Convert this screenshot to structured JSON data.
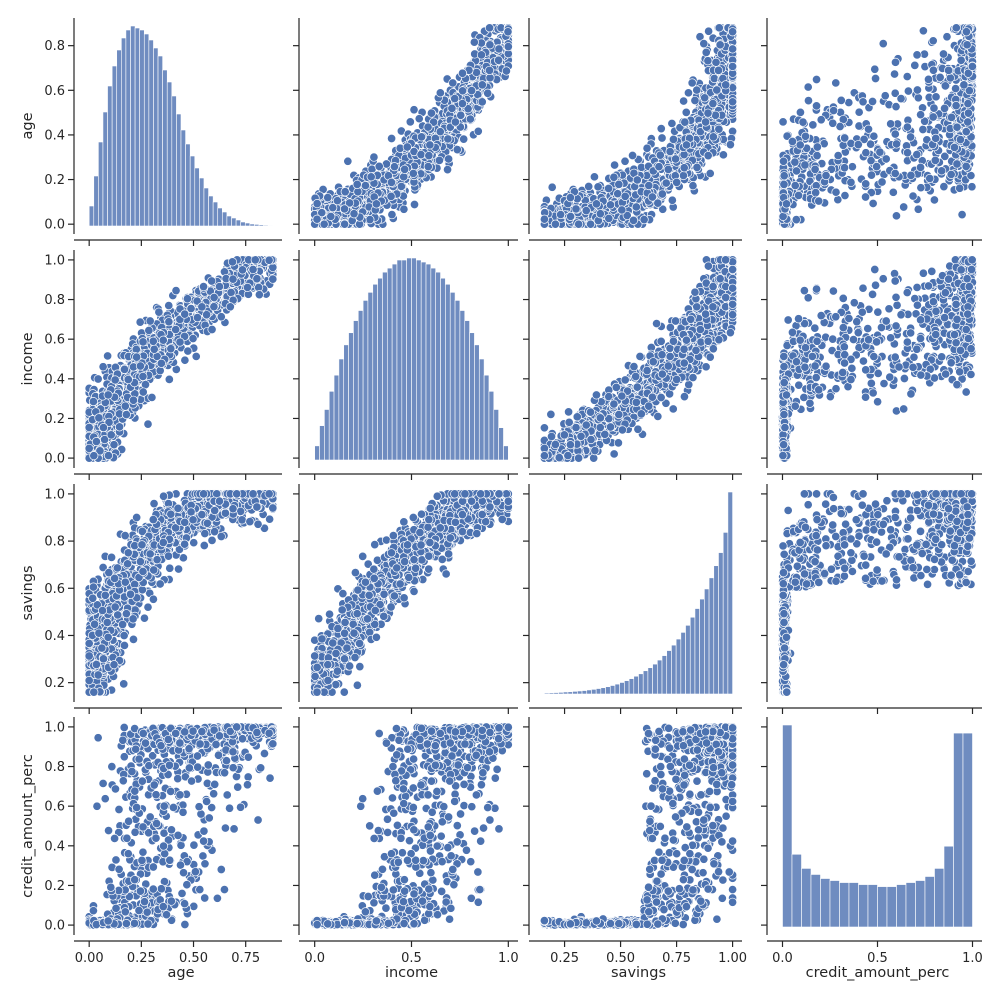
{
  "chart_data": {
    "type": "scatter",
    "subtype": "pairplot",
    "variables": [
      "age",
      "income",
      "savings",
      "credit_amount_perc"
    ],
    "color": "#4c72b0",
    "point_edge_color": "#ffffff",
    "axes": {
      "age": {
        "range": [
          -0.044,
          0.924
        ],
        "ticks": [
          0.0,
          0.25,
          0.5,
          0.75
        ],
        "tick_labels": [
          "0.00",
          "0.25",
          "0.50",
          "0.75"
        ],
        "y_range": [
          -0.044,
          0.924
        ],
        "y_ticks": [
          0.0,
          0.2,
          0.4,
          0.6,
          0.8
        ],
        "y_tick_labels": [
          "0.0",
          "0.2",
          "0.4",
          "0.6",
          "0.8"
        ]
      },
      "income": {
        "range": [
          -0.05,
          1.05
        ],
        "ticks": [
          0.0,
          0.5,
          1.0
        ],
        "tick_labels": [
          "0.0",
          "0.5",
          "1.0"
        ],
        "y_range": [
          -0.05,
          1.05
        ],
        "y_ticks": [
          0.0,
          0.2,
          0.4,
          0.6,
          0.8,
          1.0
        ],
        "y_tick_labels": [
          "0.0",
          "0.2",
          "0.4",
          "0.6",
          "0.8",
          "1.0"
        ]
      },
      "savings": {
        "range": [
          0.118,
          1.042
        ],
        "ticks": [
          0.25,
          0.5,
          0.75,
          1.0
        ],
        "tick_labels": [
          "0.25",
          "0.50",
          "0.75",
          "1.00"
        ],
        "y_range": [
          0.118,
          1.042
        ],
        "y_ticks": [
          0.2,
          0.4,
          0.6,
          0.8,
          1.0
        ],
        "y_tick_labels": [
          "0.2",
          "0.4",
          "0.6",
          "0.8",
          "1.0"
        ]
      },
      "credit_amount_perc": {
        "range": [
          -0.05,
          1.05
        ],
        "ticks": [
          0.0,
          0.5,
          1.0
        ],
        "tick_labels": [
          "0.0",
          "0.5",
          "1.0"
        ],
        "y_range": [
          -0.05,
          1.05
        ],
        "y_ticks": [
          0.0,
          0.2,
          0.4,
          0.6,
          0.8,
          1.0
        ],
        "y_tick_labels": [
          "0.0",
          "0.2",
          "0.4",
          "0.6",
          "0.8",
          "1.0"
        ]
      }
    },
    "histograms": {
      "age": {
        "bin_edges_range": [
          0.0,
          0.88
        ],
        "bins": 40,
        "relative_heights": [
          0.1,
          0.25,
          0.42,
          0.57,
          0.7,
          0.8,
          0.88,
          0.94,
          0.98,
          1.0,
          0.99,
          0.98,
          0.96,
          0.93,
          0.89,
          0.85,
          0.78,
          0.72,
          0.65,
          0.56,
          0.48,
          0.41,
          0.35,
          0.29,
          0.24,
          0.19,
          0.15,
          0.12,
          0.09,
          0.07,
          0.05,
          0.04,
          0.03,
          0.02,
          0.015,
          0.01,
          0.008,
          0.006,
          0.004,
          0.003
        ]
      },
      "income": {
        "bin_edges_range": [
          0.0,
          1.0
        ],
        "bins": 40,
        "relative_heights": [
          0.07,
          0.17,
          0.25,
          0.34,
          0.42,
          0.5,
          0.57,
          0.63,
          0.69,
          0.74,
          0.79,
          0.83,
          0.87,
          0.9,
          0.93,
          0.95,
          0.97,
          0.99,
          0.99,
          1.0,
          1.0,
          0.99,
          0.98,
          0.97,
          0.95,
          0.93,
          0.9,
          0.87,
          0.83,
          0.79,
          0.74,
          0.69,
          0.63,
          0.57,
          0.5,
          0.42,
          0.34,
          0.25,
          0.16,
          0.07
        ]
      },
      "savings": {
        "bin_edges_range": [
          0.16,
          1.0
        ],
        "bins": 40,
        "relative_heights": [
          0.005,
          0.006,
          0.007,
          0.008,
          0.01,
          0.011,
          0.013,
          0.015,
          0.017,
          0.02,
          0.023,
          0.027,
          0.031,
          0.036,
          0.042,
          0.049,
          0.057,
          0.066,
          0.076,
          0.088,
          0.1,
          0.115,
          0.13,
          0.148,
          0.168,
          0.19,
          0.215,
          0.242,
          0.272,
          0.305,
          0.34,
          0.38,
          0.423,
          0.47,
          0.52,
          0.575,
          0.635,
          0.7,
          0.8,
          1.0
        ]
      },
      "credit_amount_perc": {
        "bin_edges_range": [
          0.0,
          1.0
        ],
        "bins": 20,
        "relative_heights": [
          1.0,
          0.36,
          0.29,
          0.26,
          0.24,
          0.23,
          0.22,
          0.22,
          0.21,
          0.21,
          0.2,
          0.2,
          0.21,
          0.22,
          0.23,
          0.25,
          0.29,
          0.4,
          0.96,
          0.96
        ]
      }
    },
    "relationships": {
      "income_vs_age": "age ≈ 0.88·income^1.8 with noise ±0.12",
      "savings_vs_age": "age rises steeply as savings → 1",
      "savings_vs_income": "income rises convexly with savings",
      "credit_vs_savings": "credit_amount_perc ≈ 0 for savings < 0.6, then rises to 1",
      "credit_vs_age_income": "sigmoid increase, saturating at 1.0"
    }
  }
}
